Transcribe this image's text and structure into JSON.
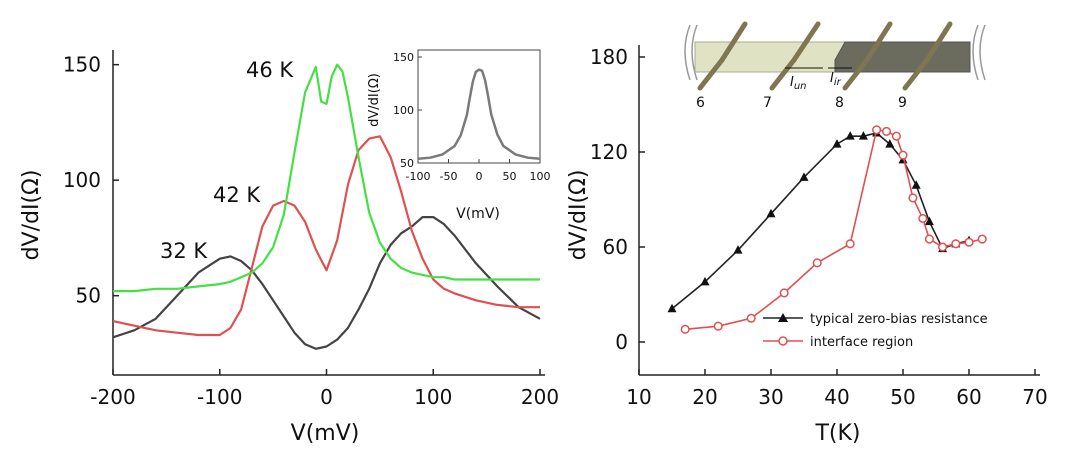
{
  "chart_data": [
    {
      "type": "line",
      "xlabel": "V(mV)",
      "ylabel": "dV/dI(Ω)",
      "xlim": [
        -200,
        200
      ],
      "ylim": [
        20,
        165
      ],
      "xticks": [
        -200,
        -100,
        0,
        100,
        200
      ],
      "yticks": [
        50,
        100,
        150
      ],
      "series": [
        {
          "name": "32 K",
          "color": "#444444",
          "x": [
            -200,
            -180,
            -160,
            -140,
            -120,
            -100,
            -90,
            -80,
            -70,
            -60,
            -50,
            -40,
            -30,
            -20,
            -10,
            0,
            10,
            20,
            30,
            40,
            50,
            60,
            70,
            80,
            90,
            100,
            110,
            120,
            140,
            160,
            180,
            200
          ],
          "y": [
            32,
            35,
            40,
            50,
            60,
            66,
            67,
            65,
            61,
            55,
            48,
            41,
            34,
            29,
            27,
            28,
            31,
            36,
            44,
            53,
            64,
            72,
            77,
            80,
            84,
            84,
            81,
            76,
            64,
            54,
            45,
            40
          ]
        },
        {
          "name": "42 K",
          "color": "#e05050",
          "x": [
            -200,
            -180,
            -160,
            -140,
            -120,
            -100,
            -90,
            -80,
            -70,
            -60,
            -50,
            -40,
            -30,
            -20,
            -10,
            0,
            10,
            20,
            30,
            40,
            50,
            60,
            70,
            80,
            90,
            100,
            110,
            120,
            140,
            160,
            180,
            200
          ],
          "y": [
            39,
            37,
            35,
            34,
            33,
            33,
            36,
            44,
            62,
            80,
            89,
            91,
            89,
            82,
            70,
            61,
            74,
            98,
            113,
            118,
            119,
            110,
            95,
            78,
            66,
            57,
            53,
            51,
            48,
            46,
            45,
            45
          ]
        },
        {
          "name": "46 K",
          "color": "#44e044",
          "x": [
            -200,
            -180,
            -160,
            -140,
            -120,
            -100,
            -90,
            -80,
            -70,
            -60,
            -50,
            -40,
            -30,
            -20,
            -10,
            -5,
            0,
            5,
            10,
            15,
            20,
            30,
            40,
            50,
            60,
            70,
            80,
            90,
            100,
            110,
            120,
            140,
            160,
            180,
            200
          ],
          "y": [
            52,
            52,
            53,
            53,
            54,
            55,
            56,
            58,
            60,
            64,
            71,
            85,
            112,
            138,
            149,
            134,
            133,
            145,
            150,
            147,
            136,
            110,
            86,
            73,
            66,
            62,
            60,
            59,
            58,
            58,
            57,
            57,
            57,
            57,
            57
          ],
          "label_text": "46 K"
        }
      ],
      "labels": [
        "32 K",
        "42 K",
        "46 K"
      ],
      "inset": {
        "type": "line",
        "xlabel": "V(mV)",
        "ylabel": "dV/dI(Ω)",
        "xlim": [
          -100,
          100
        ],
        "ylim": [
          50,
          150
        ],
        "xticks": [
          -100,
          -50,
          0,
          50,
          100
        ],
        "yticks": [
          50,
          100,
          150
        ],
        "series": [
          {
            "color": "#7a7a7a",
            "x": [
              -100,
              -80,
              -60,
              -40,
              -30,
              -20,
              -15,
              -10,
              -5,
              0,
              5,
              10,
              15,
              20,
              30,
              40,
              60,
              80,
              100
            ],
            "y": [
              54,
              55,
              58,
              66,
              76,
              95,
              112,
              127,
              136,
              138,
              137,
              128,
              113,
              96,
              77,
              66,
              58,
              55,
              54
            ]
          }
        ]
      }
    },
    {
      "type": "line",
      "xlabel": "T(K)",
      "ylabel": "dV/dI(Ω)",
      "xlim": [
        10,
        70
      ],
      "ylim": [
        -15,
        190
      ],
      "xticks": [
        10,
        20,
        30,
        40,
        50,
        60,
        70
      ],
      "yticks": [
        0,
        60,
        120,
        180
      ],
      "legend": "bottom-right",
      "series": [
        {
          "name": "typical zero-bias resistance",
          "color": "#222222",
          "marker": "triangle",
          "x": [
            15,
            20,
            25,
            30,
            35,
            40,
            42,
            44,
            46,
            48,
            50,
            52,
            54,
            56,
            58,
            60
          ],
          "y": [
            21,
            38,
            58,
            81,
            104,
            125,
            130,
            130,
            132,
            125,
            115,
            99,
            76,
            59,
            62,
            64
          ]
        },
        {
          "name": "interface region",
          "color": "#e05050",
          "marker": "circle",
          "x": [
            17,
            22,
            27,
            32,
            37,
            42,
            46,
            47.5,
            49,
            50,
            51.5,
            53,
            54,
            56,
            58,
            60,
            62
          ],
          "y": [
            8,
            10,
            15,
            31,
            50,
            62,
            134,
            133,
            130,
            118,
            91,
            78,
            65,
            60,
            62,
            63,
            65
          ]
        }
      ],
      "device_inset": {
        "electrode_labels": [
          "6",
          "7",
          "8",
          "9"
        ],
        "current_labels": [
          "I_un",
          "I_ir"
        ]
      }
    }
  ]
}
